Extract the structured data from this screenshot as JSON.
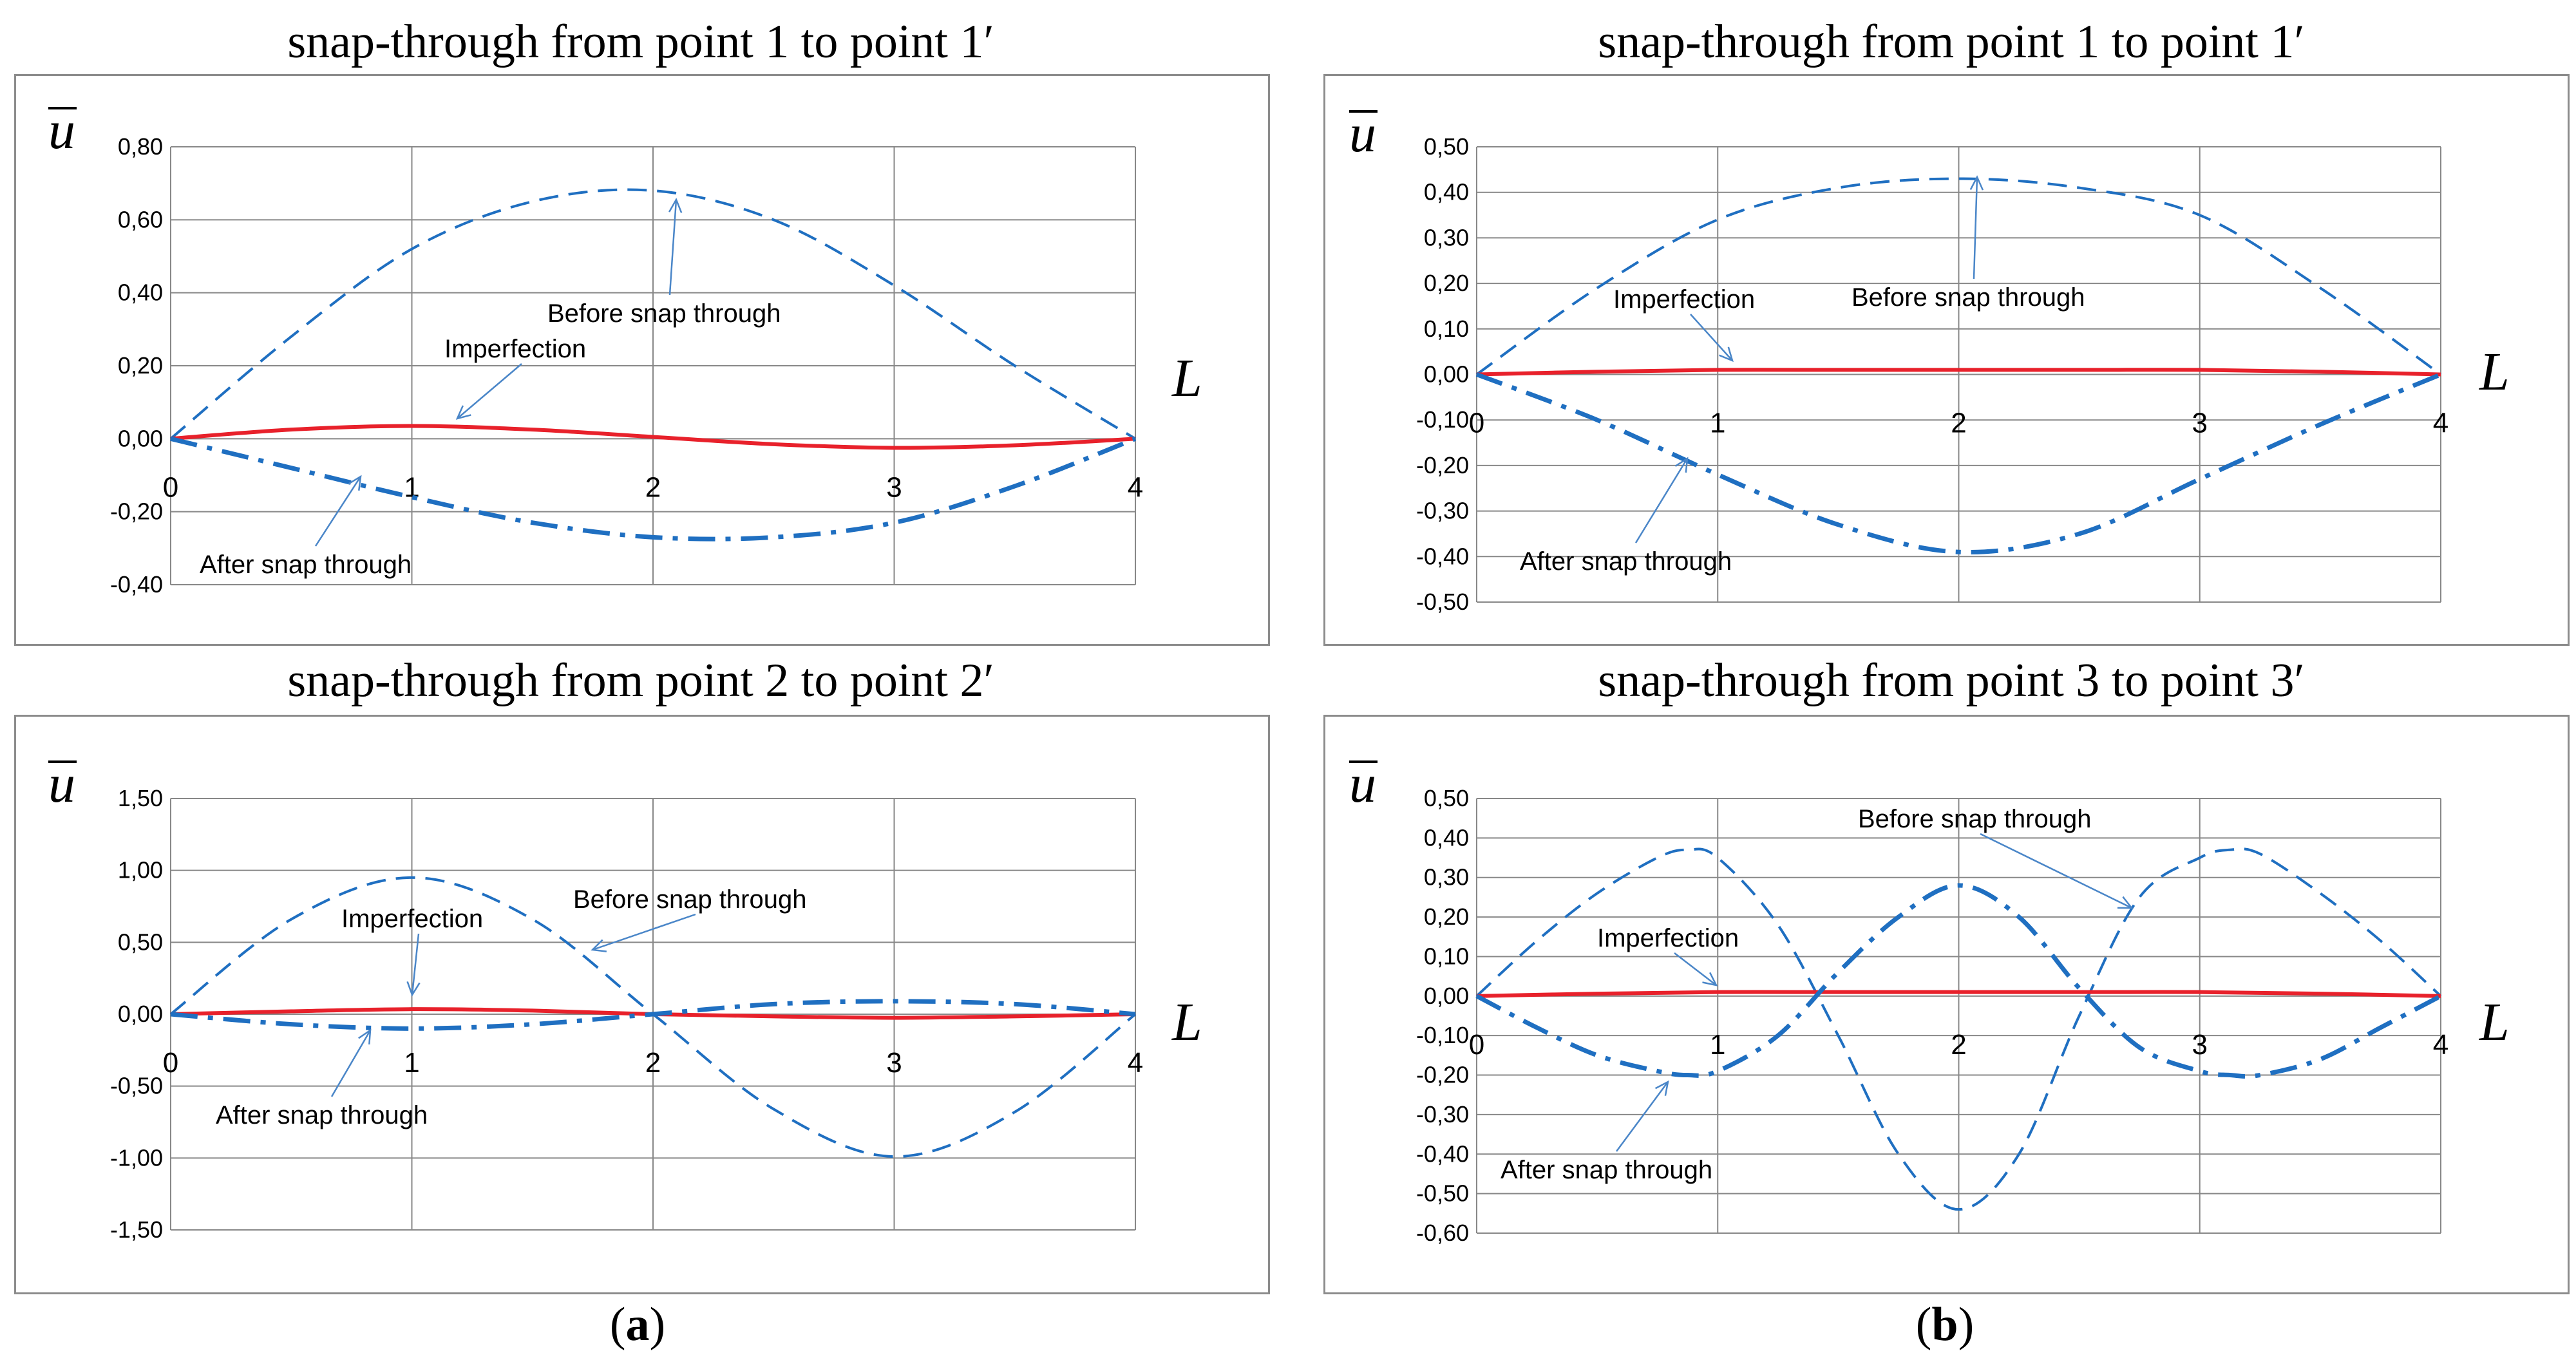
{
  "panel_labels": {
    "a": "a",
    "b": "b"
  },
  "chart_data": [
    {
      "id": "a1",
      "type": "line",
      "title": "snap-through from point 1 to point 1′",
      "xlabel": "L",
      "ylabel": "u",
      "xlim": [
        0,
        4
      ],
      "xticks": [
        0,
        1,
        2,
        3,
        4
      ],
      "ylim": [
        -0.4,
        0.8
      ],
      "yticks": [
        "-0,40",
        "-0,20",
        "0,00",
        "0,20",
        "0,40",
        "0,60",
        "0,80"
      ],
      "ytick_values": [
        -0.4,
        -0.2,
        0,
        0.2,
        0.4,
        0.6,
        0.8
      ],
      "series": [
        {
          "name": "Before snap through",
          "style": "dashed",
          "color": "#1f6fc1",
          "x": [
            0,
            0.5,
            1,
            1.5,
            2,
            2.5,
            3,
            3.5,
            4
          ],
          "values": [
            0,
            0.28,
            0.52,
            0.65,
            0.68,
            0.6,
            0.42,
            0.2,
            0
          ]
        },
        {
          "name": "Imperfection",
          "style": "solid",
          "color": "#e8212b",
          "x": [
            0,
            0.5,
            1,
            1.5,
            2,
            2.5,
            3,
            3.5,
            4
          ],
          "values": [
            0,
            0.025,
            0.035,
            0.025,
            0.005,
            -0.015,
            -0.025,
            -0.018,
            0
          ]
        },
        {
          "name": "After snap through",
          "style": "dashdot",
          "color": "#1f6fc1",
          "x": [
            0,
            0.5,
            1,
            1.5,
            2,
            2.5,
            3,
            3.5,
            4
          ],
          "values": [
            0,
            -0.08,
            -0.16,
            -0.23,
            -0.27,
            -0.27,
            -0.23,
            -0.13,
            0
          ]
        }
      ],
      "annotations": [
        {
          "text": "Before snap through",
          "series": 0
        },
        {
          "text": "Imperfection",
          "series": 1
        },
        {
          "text": "After snap through",
          "series": 2
        }
      ]
    },
    {
      "id": "b1",
      "type": "line",
      "title": "snap-through from point 1 to point 1′",
      "xlabel": "L",
      "ylabel": "u",
      "xlim": [
        0,
        4
      ],
      "xticks": [
        0,
        1,
        2,
        3,
        4
      ],
      "ylim": [
        -0.5,
        0.5
      ],
      "yticks": [
        "-0,50",
        "-0,40",
        "-0,30",
        "-0,20",
        "-0,10",
        "0,00",
        "0,10",
        "0,20",
        "0,30",
        "0,40",
        "0,50"
      ],
      "ytick_values": [
        -0.5,
        -0.4,
        -0.3,
        -0.2,
        -0.1,
        0,
        0.1,
        0.2,
        0.3,
        0.4,
        0.5
      ],
      "series": [
        {
          "name": "Before snap through",
          "style": "dashed",
          "color": "#1f6fc1",
          "x": [
            0,
            0.5,
            1,
            1.5,
            2,
            2.5,
            3,
            3.5,
            4
          ],
          "values": [
            0,
            0.19,
            0.34,
            0.41,
            0.43,
            0.41,
            0.35,
            0.19,
            0
          ]
        },
        {
          "name": "Imperfection",
          "style": "solid",
          "color": "#e8212b",
          "x": [
            0,
            0.5,
            1,
            1.5,
            2,
            2.5,
            3,
            3.5,
            4
          ],
          "values": [
            0,
            0.006,
            0.01,
            0.01,
            0.01,
            0.01,
            0.01,
            0.006,
            0
          ]
        },
        {
          "name": "After snap through",
          "style": "dashdot",
          "color": "#1f6fc1",
          "x": [
            0,
            0.5,
            1,
            1.5,
            2,
            2.5,
            3,
            3.5,
            4
          ],
          "values": [
            0,
            -0.1,
            -0.22,
            -0.33,
            -0.39,
            -0.35,
            -0.23,
            -0.11,
            0
          ]
        }
      ],
      "annotations": [
        {
          "text": "Before snap through",
          "series": 0
        },
        {
          "text": "Imperfection",
          "series": 1
        },
        {
          "text": "After snap through",
          "series": 2
        }
      ]
    },
    {
      "id": "a2",
      "type": "line",
      "title": "snap-through from point 2 to point 2′",
      "xlabel": "L",
      "ylabel": "u",
      "xlim": [
        0,
        4
      ],
      "xticks": [
        0,
        1,
        2,
        3,
        4
      ],
      "ylim": [
        -1.5,
        1.5
      ],
      "yticks": [
        "-1,50",
        "-1,00",
        "-0,50",
        "0,00",
        "0,50",
        "1,00",
        "1,50"
      ],
      "ytick_values": [
        -1.5,
        -1.0,
        -0.5,
        0,
        0.5,
        1.0,
        1.5
      ],
      "series": [
        {
          "name": "Before snap through",
          "style": "dashed",
          "color": "#1f6fc1",
          "x": [
            0,
            0.5,
            1,
            1.5,
            2,
            2.5,
            3,
            3.5,
            4
          ],
          "values": [
            0,
            0.66,
            0.95,
            0.66,
            0,
            -0.66,
            -0.99,
            -0.68,
            0
          ]
        },
        {
          "name": "Imperfection",
          "style": "solid",
          "color": "#e8212b",
          "x": [
            0,
            0.5,
            1,
            1.5,
            2,
            2.5,
            3,
            3.5,
            4
          ],
          "values": [
            0,
            0.02,
            0.035,
            0.025,
            0,
            -0.015,
            -0.025,
            -0.015,
            0
          ]
        },
        {
          "name": "After snap through",
          "style": "dashdot",
          "color": "#1f6fc1",
          "x": [
            0,
            0.5,
            1,
            1.5,
            2,
            2.5,
            3,
            3.5,
            4
          ],
          "values": [
            0,
            -0.07,
            -0.1,
            -0.07,
            0,
            0.07,
            0.09,
            0.07,
            0
          ]
        }
      ],
      "annotations": [
        {
          "text": "Before snap through",
          "series": 0
        },
        {
          "text": "Imperfection",
          "series": 1
        },
        {
          "text": "After snap through",
          "series": 2
        }
      ]
    },
    {
      "id": "b2",
      "type": "line",
      "title": "snap-through from point 3 to point 3′",
      "xlabel": "L",
      "ylabel": "u",
      "xlim": [
        0,
        4
      ],
      "xticks": [
        0,
        1,
        2,
        3,
        4
      ],
      "ylim": [
        -0.6,
        0.5
      ],
      "yticks": [
        "-0,60",
        "-0,50",
        "-0,40",
        "-0,30",
        "-0,20",
        "-0,10",
        "0,00",
        "0,10",
        "0,20",
        "0,30",
        "0,40",
        "0,50"
      ],
      "ytick_values": [
        -0.6,
        -0.5,
        -0.4,
        -0.3,
        -0.2,
        -0.1,
        0,
        0.1,
        0.2,
        0.3,
        0.4,
        0.5
      ],
      "series": [
        {
          "name": "Before snap through",
          "style": "dashed",
          "color": "#1f6fc1",
          "x": [
            0,
            0.25,
            0.5,
            0.75,
            0.875,
            1,
            1.25,
            1.5,
            1.75,
            2,
            2.25,
            2.5,
            2.75,
            3,
            3.125,
            3.25,
            3.5,
            3.75,
            4
          ],
          "values": [
            0,
            0.14,
            0.26,
            0.35,
            0.37,
            0.35,
            0.18,
            -0.1,
            -0.4,
            -0.54,
            -0.4,
            -0.05,
            0.25,
            0.35,
            0.37,
            0.36,
            0.26,
            0.14,
            0
          ]
        },
        {
          "name": "Imperfection",
          "style": "solid",
          "color": "#e8212b",
          "x": [
            0,
            0.5,
            1,
            1.5,
            2,
            2.5,
            3,
            3.5,
            4
          ],
          "values": [
            0,
            0.006,
            0.01,
            0.01,
            0.01,
            0.01,
            0.01,
            0.006,
            0
          ]
        },
        {
          "name": "After snap through",
          "style": "dashdot",
          "color": "#1f6fc1",
          "x": [
            0,
            0.25,
            0.5,
            0.75,
            0.875,
            1,
            1.25,
            1.5,
            1.75,
            2,
            2.25,
            2.5,
            2.75,
            3,
            3.125,
            3.25,
            3.5,
            3.75,
            4
          ],
          "values": [
            0,
            -0.08,
            -0.15,
            -0.19,
            -0.2,
            -0.19,
            -0.1,
            0.06,
            0.2,
            0.28,
            0.2,
            0.02,
            -0.13,
            -0.19,
            -0.2,
            -0.2,
            -0.16,
            -0.08,
            0
          ]
        }
      ],
      "annotations": [
        {
          "text": "Before snap through",
          "series": 0
        },
        {
          "text": "Imperfection",
          "series": 1
        },
        {
          "text": "After snap through",
          "series": 2
        }
      ]
    }
  ]
}
